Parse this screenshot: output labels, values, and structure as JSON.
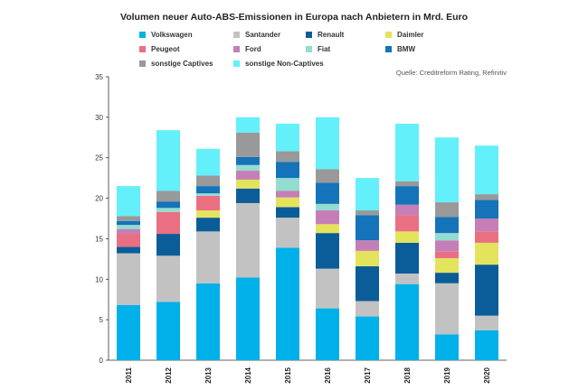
{
  "chart_data": {
    "type": "bar",
    "stacked": true,
    "title": "Volumen neuer Auto-ABS-Emissionen in Europa nach Anbietern in Mrd. Euro",
    "source": "Quelle: Creditreform Rating, Refinitiv",
    "categories": [
      "2011",
      "2012",
      "2013",
      "2014",
      "2015",
      "2016",
      "2017",
      "2018",
      "2019",
      "2020"
    ],
    "ylim": [
      0,
      35
    ],
    "yticks": [
      0,
      5,
      10,
      15,
      20,
      25,
      30,
      35
    ],
    "grid": false,
    "legend_placement": "top",
    "series": [
      {
        "name": "Volkswagen",
        "color": "#00b0e8",
        "values": [
          6.8,
          7.2,
          9.5,
          10.2,
          13.9,
          6.4,
          5.4,
          9.4,
          3.2,
          3.7
        ]
      },
      {
        "name": "Santander",
        "color": "#c2c2c2",
        "values": [
          6.4,
          5.7,
          6.4,
          9.2,
          3.7,
          4.9,
          1.9,
          1.3,
          6.3,
          1.8
        ]
      },
      {
        "name": "Renault",
        "color": "#0b5d99",
        "values": [
          0.8,
          2.7,
          1.7,
          1.8,
          1.3,
          4.4,
          4.3,
          3.8,
          1.3,
          6.3
        ]
      },
      {
        "name": "Daimler",
        "color": "#e4e35c",
        "values": [
          0.0,
          0.0,
          0.9,
          1.1,
          1.2,
          1.1,
          1.9,
          1.4,
          1.8,
          2.7
        ]
      },
      {
        "name": "Peugeot",
        "color": "#ea6f83",
        "values": [
          1.6,
          2.7,
          1.8,
          0.0,
          0.0,
          0.0,
          0.0,
          2.0,
          0.8,
          1.4
        ]
      },
      {
        "name": "Ford",
        "color": "#c57fb6",
        "values": [
          0.6,
          0.0,
          0.0,
          1.1,
          0.8,
          1.7,
          1.3,
          1.3,
          1.4,
          1.6
        ]
      },
      {
        "name": "Fiat",
        "color": "#93dcd0",
        "values": [
          0.5,
          0.5,
          0.3,
          0.7,
          1.6,
          0.8,
          0.0,
          0.0,
          0.9,
          0.0
        ]
      },
      {
        "name": "BMW",
        "color": "#1473b9",
        "values": [
          0.5,
          0.8,
          0.9,
          1.0,
          2.0,
          2.6,
          3.1,
          2.3,
          2.0,
          2.3
        ]
      },
      {
        "name": "sonstige Captives",
        "color": "#999999",
        "values": [
          0.6,
          1.3,
          1.3,
          3.0,
          1.3,
          1.7,
          0.6,
          0.6,
          1.8,
          0.7
        ]
      },
      {
        "name": "sonstige Non-Captives",
        "color": "#63f0fa",
        "values": [
          3.7,
          7.5,
          3.3,
          1.9,
          3.4,
          6.4,
          4.0,
          7.1,
          8.0,
          6.0
        ]
      }
    ]
  }
}
